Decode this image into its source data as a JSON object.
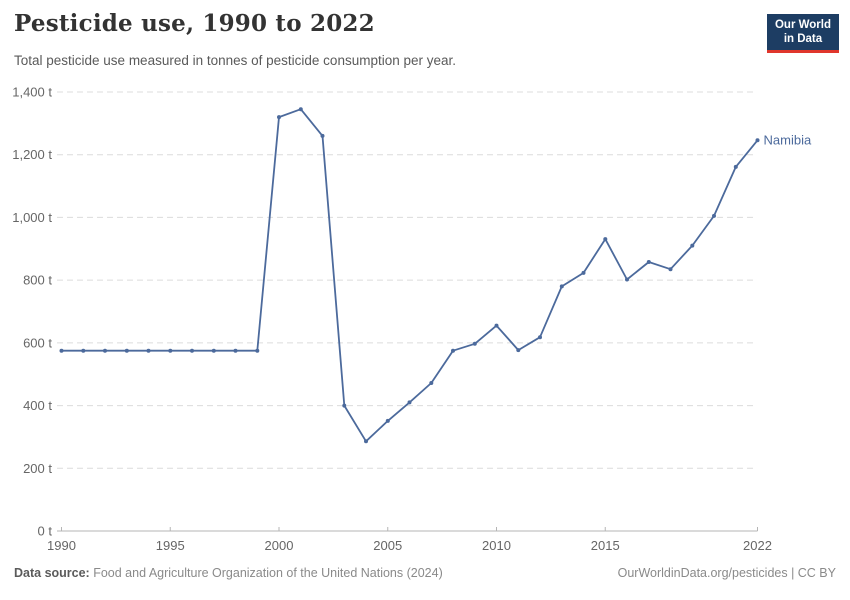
{
  "header": {
    "title": "Pesticide use, 1990 to 2022",
    "subtitle": "Total pesticide use measured in tonnes of pesticide consumption per year.",
    "logo": {
      "line1": "Our World",
      "line2": "in Data"
    }
  },
  "chart_data": {
    "type": "line",
    "title": "Pesticide use, 1990 to 2022",
    "xlabel": "",
    "ylabel": "",
    "x": [
      1990,
      1991,
      1992,
      1993,
      1994,
      1995,
      1996,
      1997,
      1998,
      1999,
      2000,
      2001,
      2002,
      2003,
      2004,
      2005,
      2006,
      2007,
      2008,
      2009,
      2010,
      2011,
      2012,
      2013,
      2014,
      2015,
      2016,
      2017,
      2018,
      2019,
      2020,
      2021,
      2022
    ],
    "series": [
      {
        "name": "Namibia",
        "color": "#4C6A9C",
        "values": [
          575,
          575,
          575,
          575,
          575,
          575,
          575,
          575,
          575,
          575,
          1320,
          1345,
          1260,
          400,
          286,
          351,
          410,
          472,
          575,
          597,
          655,
          577,
          618,
          780,
          823,
          931,
          802,
          858,
          835,
          910,
          1005,
          1161,
          1246
        ]
      }
    ],
    "ylim": [
      0,
      1400
    ],
    "yticks": [
      0,
      200,
      400,
      600,
      800,
      1000,
      1200,
      1400
    ],
    "ytick_suffix": " t",
    "xticks": [
      1990,
      1995,
      2000,
      2005,
      2010,
      2015,
      2022
    ],
    "grid": "horizontal-dashed",
    "legend_position": "end-of-line-label",
    "end_label": "Namibia"
  },
  "footer": {
    "data_source_label": "Data source:",
    "data_source_value": "Food and Agriculture Organization of the United Nations (2024)",
    "site_credit": "OurWorldinData.org/pesticides | CC BY"
  },
  "colors": {
    "line": "#4C6A9C",
    "grid": "#dcdcdc",
    "axis": "#b5b5b5",
    "tick_label": "#666666",
    "logo_bg": "#1d3d63",
    "logo_accent": "#e0362c"
  }
}
